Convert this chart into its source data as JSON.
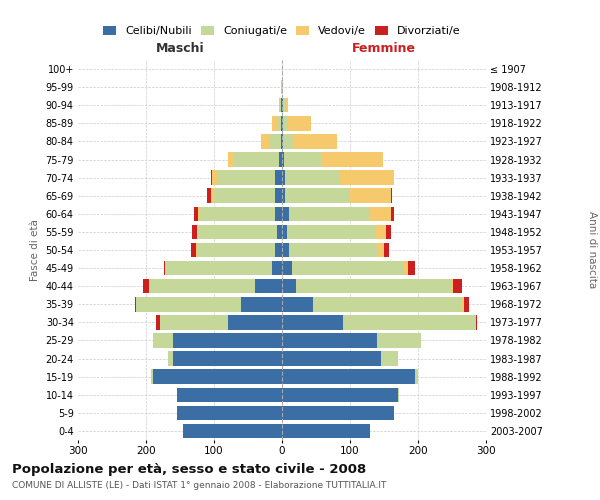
{
  "age_groups": [
    "0-4",
    "5-9",
    "10-14",
    "15-19",
    "20-24",
    "25-29",
    "30-34",
    "35-39",
    "40-44",
    "45-49",
    "50-54",
    "55-59",
    "60-64",
    "65-69",
    "70-74",
    "75-79",
    "80-84",
    "85-89",
    "90-94",
    "95-99",
    "100+"
  ],
  "birth_years": [
    "2003-2007",
    "1998-2002",
    "1993-1997",
    "1988-1992",
    "1983-1987",
    "1978-1982",
    "1973-1977",
    "1968-1972",
    "1963-1967",
    "1958-1962",
    "1953-1957",
    "1948-1952",
    "1943-1947",
    "1938-1942",
    "1933-1937",
    "1928-1932",
    "1923-1927",
    "1918-1922",
    "1913-1917",
    "1908-1912",
    "≤ 1907"
  ],
  "maschi": {
    "celibi": [
      145,
      155,
      155,
      190,
      160,
      160,
      80,
      60,
      40,
      15,
      10,
      8,
      10,
      10,
      10,
      5,
      1,
      1,
      1,
      0,
      0
    ],
    "coniugati": [
      0,
      0,
      0,
      2,
      8,
      30,
      100,
      155,
      155,
      155,
      115,
      115,
      110,
      90,
      85,
      65,
      18,
      6,
      3,
      1,
      0
    ],
    "vedovi": [
      0,
      0,
      0,
      0,
      0,
      0,
      0,
      0,
      1,
      2,
      1,
      2,
      3,
      5,
      8,
      10,
      12,
      8,
      1,
      0,
      0
    ],
    "divorziati": [
      0,
      0,
      0,
      0,
      0,
      0,
      5,
      1,
      8,
      2,
      8,
      8,
      7,
      5,
      1,
      0,
      0,
      0,
      0,
      0,
      0
    ]
  },
  "femmine": {
    "nubili": [
      130,
      165,
      170,
      195,
      145,
      140,
      90,
      45,
      20,
      15,
      10,
      8,
      10,
      5,
      5,
      3,
      1,
      1,
      1,
      0,
      0
    ],
    "coniugate": [
      0,
      0,
      2,
      5,
      25,
      65,
      195,
      220,
      230,
      165,
      130,
      130,
      120,
      95,
      80,
      55,
      15,
      6,
      3,
      1,
      0
    ],
    "vedove": [
      0,
      0,
      0,
      0,
      0,
      0,
      0,
      2,
      2,
      5,
      10,
      15,
      30,
      60,
      80,
      90,
      65,
      35,
      5,
      1,
      0
    ],
    "divorziate": [
      0,
      0,
      0,
      0,
      0,
      0,
      2,
      8,
      12,
      10,
      8,
      8,
      5,
      2,
      0,
      0,
      0,
      0,
      0,
      0,
      0
    ]
  },
  "colors": {
    "celibi_nubili": "#3a6ea5",
    "coniugati": "#c5d89a",
    "vedovi": "#f5c96c",
    "divorziati": "#cc2020"
  },
  "xlim": 300,
  "title": "Popolazione per età, sesso e stato civile - 2008",
  "subtitle": "COMUNE DI ALLISTE (LE) - Dati ISTAT 1° gennaio 2008 - Elaborazione TUTTITALIA.IT",
  "ylabel_left": "Fasce di età",
  "ylabel_right": "Anni di nascita",
  "xlabel_maschi": "Maschi",
  "xlabel_femmine": "Femmine",
  "legend_labels": [
    "Celibi/Nubili",
    "Coniugati/e",
    "Vedovi/e",
    "Divorziati/e"
  ],
  "background_color": "#ffffff",
  "grid_color": "#cccccc"
}
